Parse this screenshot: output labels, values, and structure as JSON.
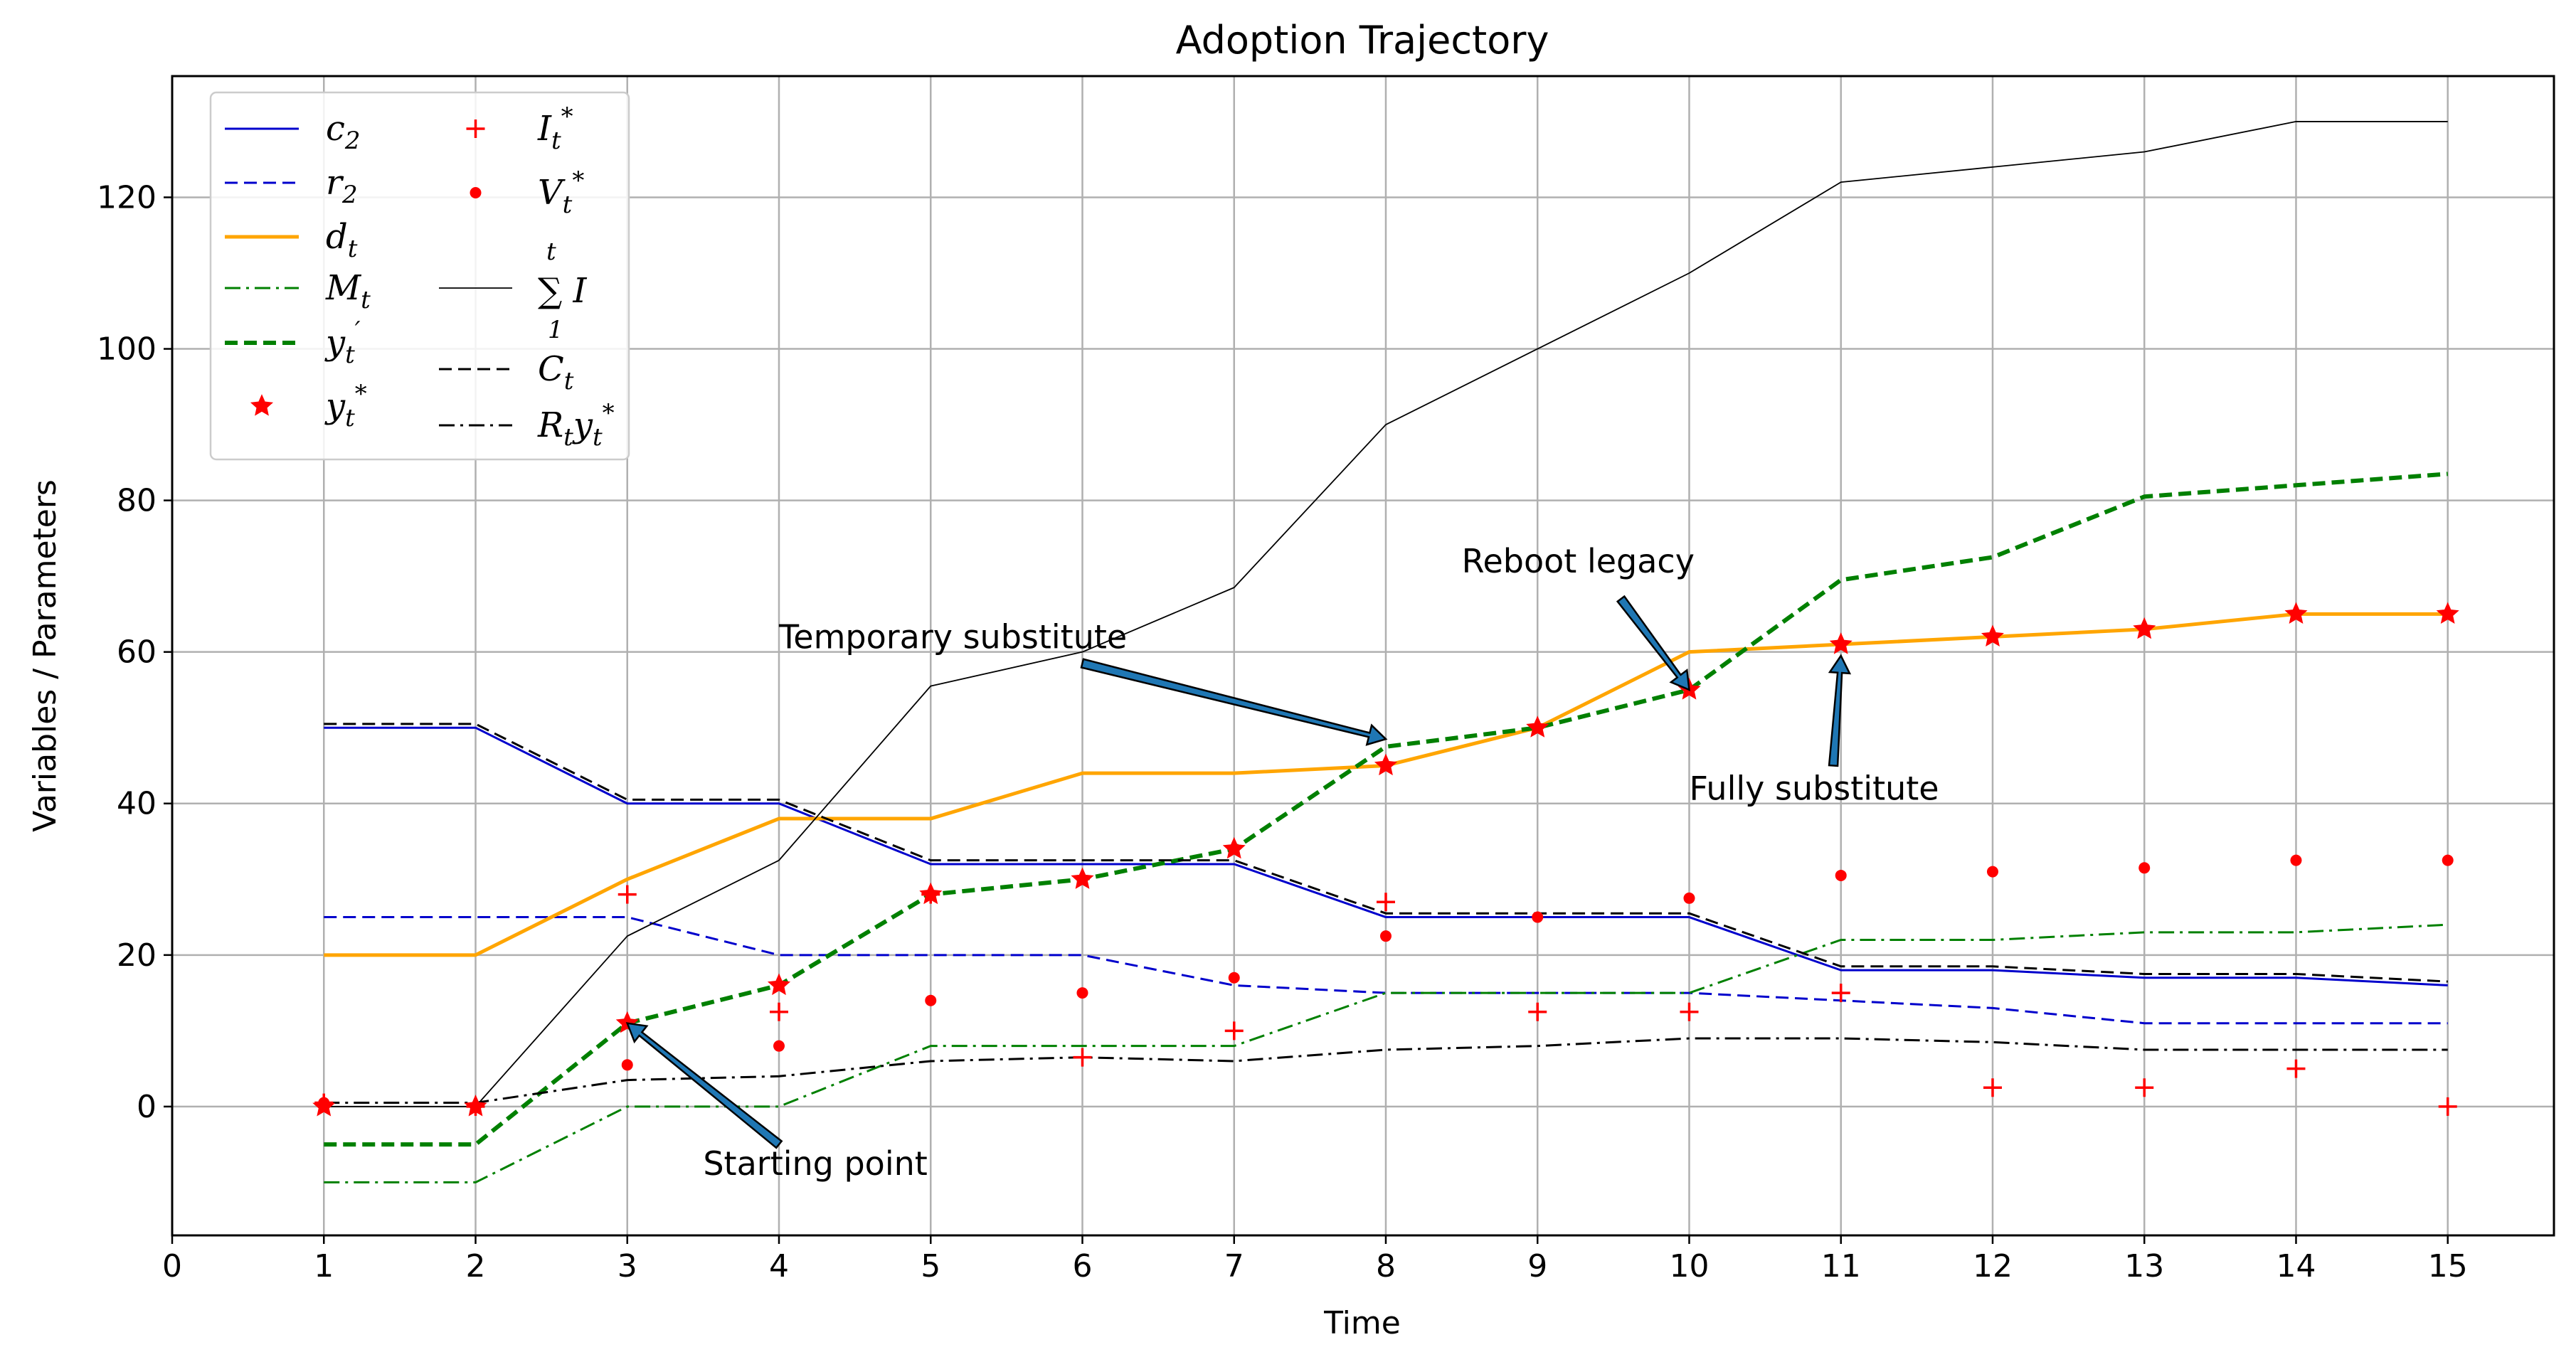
{
  "chart_data": {
    "type": "line",
    "title": "Adoption Trajectory",
    "xlabel": "Time",
    "ylabel": "Variables / Parameters",
    "xlim": [
      0,
      15.7
    ],
    "ylim": [
      -17,
      136
    ],
    "xticks": [
      "0",
      "1",
      "2",
      "3",
      "4",
      "5",
      "6",
      "7",
      "8",
      "9",
      "10",
      "11",
      "12",
      "13",
      "14",
      "15"
    ],
    "yticks": [
      "0",
      "20",
      "40",
      "60",
      "80",
      "100",
      "120"
    ],
    "grid": true,
    "legend_position": "top-left",
    "x": [
      1,
      2,
      3,
      4,
      5,
      6,
      7,
      8,
      9,
      10,
      11,
      12,
      13,
      14,
      15
    ],
    "series": [
      {
        "id": "c2",
        "name": "c2",
        "color": "#0000cc",
        "style": "solid",
        "width": 3,
        "values": [
          50,
          50,
          40,
          40,
          32,
          32,
          32,
          25,
          25,
          25,
          18,
          18,
          17,
          17,
          16
        ]
      },
      {
        "id": "r2",
        "name": "r2",
        "color": "#0000cc",
        "style": "dashed",
        "width": 3,
        "values": [
          25,
          25,
          25,
          20,
          20,
          20,
          16,
          15,
          15,
          15,
          14,
          13,
          11,
          11,
          11
        ]
      },
      {
        "id": "dt",
        "name": "dt",
        "color": "#ffa500",
        "style": "solid",
        "width": 5,
        "values": [
          20,
          20,
          30,
          38,
          38,
          44,
          44,
          45,
          50,
          60,
          61,
          62,
          63,
          65,
          65
        ]
      },
      {
        "id": "Mt",
        "name": "Mt",
        "color": "#008000",
        "style": "dashdot",
        "width": 3,
        "values": [
          -10,
          -10,
          0,
          0,
          8,
          8,
          8,
          15,
          15,
          15,
          22,
          22,
          23,
          23,
          24
        ]
      },
      {
        "id": "yprime",
        "name": "y't",
        "color": "#008000",
        "style": "dashed",
        "width": 6,
        "values": [
          -5,
          -5,
          11,
          16,
          28,
          30,
          34,
          47.5,
          50,
          55,
          69.5,
          72.5,
          80.5,
          82,
          83.5
        ]
      },
      {
        "id": "sumI",
        "name": "sum I",
        "color": "#000000",
        "style": "solid",
        "width": 1.8,
        "values": [
          0,
          0,
          22.5,
          32.5,
          55.5,
          60,
          68.5,
          90,
          100,
          110,
          122,
          124,
          126,
          130,
          130
        ]
      },
      {
        "id": "Ct",
        "name": "Ct",
        "color": "#000000",
        "style": "dashed",
        "width": 3,
        "values": [
          50.5,
          50.5,
          40.5,
          40.5,
          32.5,
          32.5,
          32.5,
          25.5,
          25.5,
          25.5,
          18.5,
          18.5,
          17.5,
          17.5,
          16.5
        ]
      },
      {
        "id": "Rtyt",
        "name": "Rt yt*",
        "color": "#000000",
        "style": "dashdot",
        "width": 3,
        "values": [
          0.5,
          0.5,
          3.5,
          4,
          6,
          6.5,
          6,
          7.5,
          8,
          9,
          9,
          8.5,
          7.5,
          7.5,
          7.5
        ]
      }
    ],
    "markers": [
      {
        "id": "yt",
        "name": "yt*",
        "color": "#ff0000",
        "shape": "star",
        "values": [
          0,
          0,
          11,
          16,
          28,
          30,
          34,
          45,
          50,
          55,
          61,
          62,
          63,
          65,
          65
        ]
      },
      {
        "id": "It",
        "name": "It*",
        "color": "#ff0000",
        "shape": "plus",
        "values": [
          0.5,
          0,
          28,
          12.5,
          28,
          6.5,
          10,
          27,
          12.5,
          12.5,
          15,
          2.5,
          2.5,
          5,
          0
        ]
      },
      {
        "id": "Vt",
        "name": "Vt*",
        "color": "#ff0000",
        "shape": "dot",
        "values": [
          0.5,
          0,
          5.5,
          8,
          14,
          15,
          17,
          22.5,
          25,
          27.5,
          30.5,
          31,
          31.5,
          32.5,
          32.5
        ]
      }
    ],
    "annotations": [
      {
        "id": "start",
        "text": "Starting point",
        "point": [
          3,
          11
        ],
        "text_at": [
          3.5,
          -9
        ]
      },
      {
        "id": "temp",
        "text": "Temporary substitute",
        "point": [
          8,
          48.5
        ],
        "text_at": [
          4,
          60.5
        ]
      },
      {
        "id": "reboot",
        "text": "Reboot legacy",
        "point": [
          10,
          55
        ],
        "text_at": [
          8.5,
          70.5
        ]
      },
      {
        "id": "fully",
        "text": "Fully substitute",
        "point": [
          11,
          59.5
        ],
        "text_at": [
          10,
          40.5
        ]
      }
    ],
    "legend": {
      "col1": [
        {
          "key": "c2",
          "base": "c",
          "sub": "2",
          "sup": ""
        },
        {
          "key": "r2",
          "base": "r",
          "sub": "2",
          "sup": ""
        },
        {
          "key": "dt",
          "base": "d",
          "sub": "t",
          "sup": ""
        },
        {
          "key": "Mt",
          "base": "M",
          "sub": "t",
          "sup": ""
        },
        {
          "key": "yprime",
          "base": "y",
          "sub": "t",
          "sup": "′"
        },
        {
          "key": "yt",
          "base": "y",
          "sub": "t",
          "sup": "*"
        }
      ],
      "col2": [
        {
          "key": "It",
          "base": "I",
          "sub": "t",
          "sup": "*"
        },
        {
          "key": "Vt",
          "base": "V",
          "sub": "t",
          "sup": "*"
        },
        {
          "key": "sumI",
          "base": "∑ I",
          "sub": "1",
          "sup": "t"
        },
        {
          "key": "Ct",
          "base": "C",
          "sub": "t",
          "sup": ""
        },
        {
          "key": "Rtyt",
          "base": "R",
          "sub": "t",
          "sup": "",
          "tail_base": "y",
          "tail_sub": "t",
          "tail_sup": "*"
        }
      ]
    }
  }
}
